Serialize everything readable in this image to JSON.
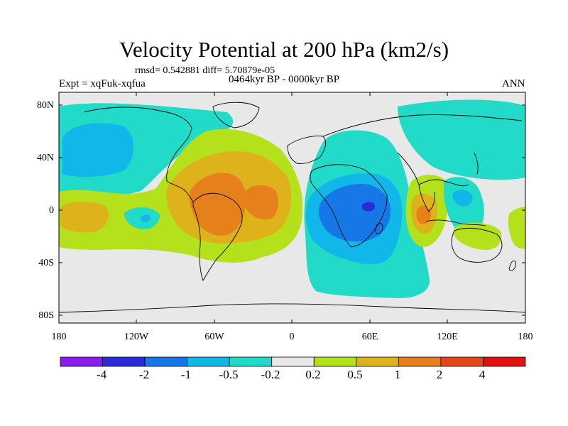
{
  "title": "Velocity Potential at 200 hPa (km2/s)",
  "subtitle": "rmsd= 0.542881 diff= 5.70879e-05",
  "experiment": "Expt = xqFuk-xqfua",
  "period": "0464kyr BP - 0000kyr BP",
  "season": "ANN",
  "lat_ticks": [
    "80N",
    "40N",
    "0",
    "40S",
    "80S"
  ],
  "lon_ticks": [
    "180",
    "120W",
    "60W",
    "0",
    "60E",
    "120E",
    "180"
  ],
  "colorbar": {
    "labels": [
      "-4",
      "-2",
      "-1",
      "-0.5",
      "-0.2",
      "0.2",
      "0.5",
      "1",
      "2",
      "4"
    ],
    "colors": [
      "#8b1cf0",
      "#2a2ad8",
      "#1678e6",
      "#10b7e8",
      "#21dbc8",
      "#e8e8e8",
      "#b4e01c",
      "#ddb21a",
      "#e5801b",
      "#e64616",
      "#e21010"
    ]
  },
  "colors": {
    "neutral": "#e8e8e8",
    "coast": "#000000"
  }
}
